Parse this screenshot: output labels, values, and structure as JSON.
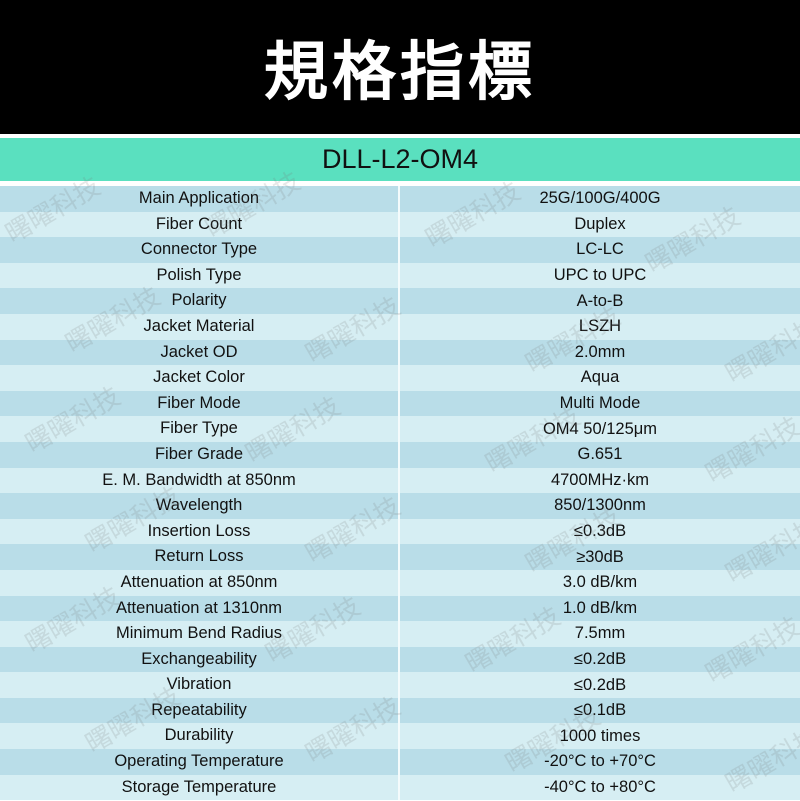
{
  "header": {
    "title": "規格指標"
  },
  "model": "DLL-L2-OM4",
  "watermark": "曙曜科技",
  "colors": {
    "title_band": "#000000",
    "model_band": "#5ae0bf",
    "row_dark": "#b9dde8",
    "row_light": "#d6eef3"
  },
  "specs": [
    {
      "label": "Main Application",
      "value": "25G/100G/400G"
    },
    {
      "label": "Fiber Count",
      "value": "Duplex"
    },
    {
      "label": "Connector Type",
      "value": "LC-LC"
    },
    {
      "label": "Polish Type",
      "value": "UPC to UPC"
    },
    {
      "label": "Polarity",
      "value": "A-to-B"
    },
    {
      "label": "Jacket Material",
      "value": "LSZH"
    },
    {
      "label": "Jacket OD",
      "value": "2.0mm"
    },
    {
      "label": "Jacket Color",
      "value": "Aqua"
    },
    {
      "label": "Fiber Mode",
      "value": "Multi Mode"
    },
    {
      "label": "Fiber Type",
      "value": "OM4 50/125μm"
    },
    {
      "label": "Fiber Grade",
      "value": "G.651"
    },
    {
      "label": "E. M. Bandwidth at 850nm",
      "value": "4700MHz·km"
    },
    {
      "label": "Wavelength",
      "value": "850/1300nm"
    },
    {
      "label": "Insertion Loss",
      "value": "≤0.3dB"
    },
    {
      "label": "Return Loss",
      "value": "≥30dB"
    },
    {
      "label": "Attenuation at 850nm",
      "value": "3.0 dB/km"
    },
    {
      "label": "Attenuation at 1310nm",
      "value": "1.0 dB/km"
    },
    {
      "label": "Minimum Bend Radius",
      "value": "7.5mm"
    },
    {
      "label": "Exchangeability",
      "value": "≤0.2dB"
    },
    {
      "label": "Vibration",
      "value": "≤0.2dB"
    },
    {
      "label": "Repeatability",
      "value": "≤0.1dB"
    },
    {
      "label": "Durability",
      "value": "1000 times"
    },
    {
      "label": "Operating Temperature",
      "value": "-20°C to +70°C"
    },
    {
      "label": "Storage Temperature",
      "value": "-40°C to +80°C"
    }
  ]
}
